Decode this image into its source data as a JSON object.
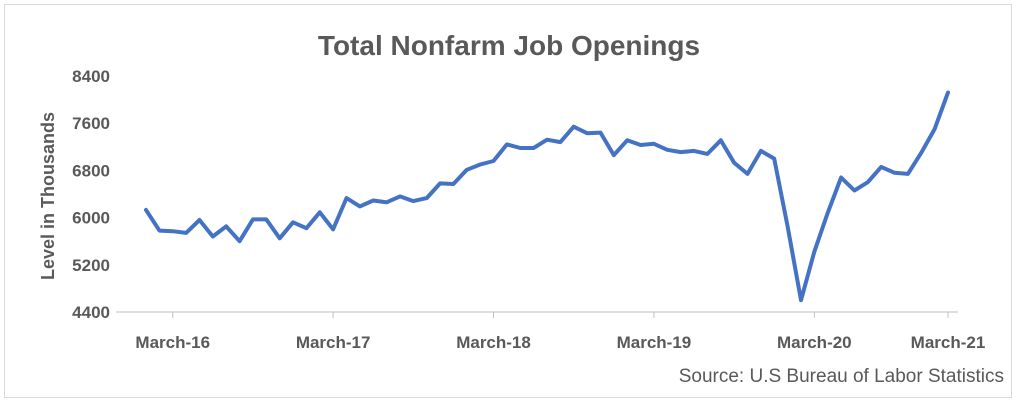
{
  "chart_data": {
    "type": "line",
    "title": "Total Nonfarm Job Openings",
    "ylabel": "Level in Thousands",
    "xlabel": "",
    "source": "Source: U.S Bureau of Labor Statistics",
    "ylim": [
      4400,
      8400
    ],
    "yticks": [
      "8400",
      "7600",
      "6800",
      "6000",
      "5200",
      "4400"
    ],
    "xtick_labels": [
      "March-16",
      "March-17",
      "March-18",
      "March-19",
      "March-20",
      "March-21"
    ],
    "line_color": "#4472C4",
    "grid": false,
    "x_start": "January-16",
    "series": [
      {
        "values": [
          6130,
          5780,
          5770,
          5740,
          5960,
          5680,
          5850,
          5600,
          5970,
          5970,
          5650,
          5920,
          5820,
          6090,
          5800,
          6330,
          6190,
          6290,
          6260,
          6360,
          6280,
          6330,
          6580,
          6570,
          6810,
          6900,
          6960,
          7240,
          7180,
          7180,
          7320,
          7280,
          7540,
          7430,
          7440,
          7060,
          7310,
          7230,
          7250,
          7150,
          7110,
          7130,
          7080,
          7310,
          6930,
          6740,
          7130,
          7000,
          5850,
          4600,
          5420,
          6080,
          6680,
          6460,
          6600,
          6860,
          6760,
          6740,
          7100,
          7500,
          8120
        ]
      }
    ]
  }
}
